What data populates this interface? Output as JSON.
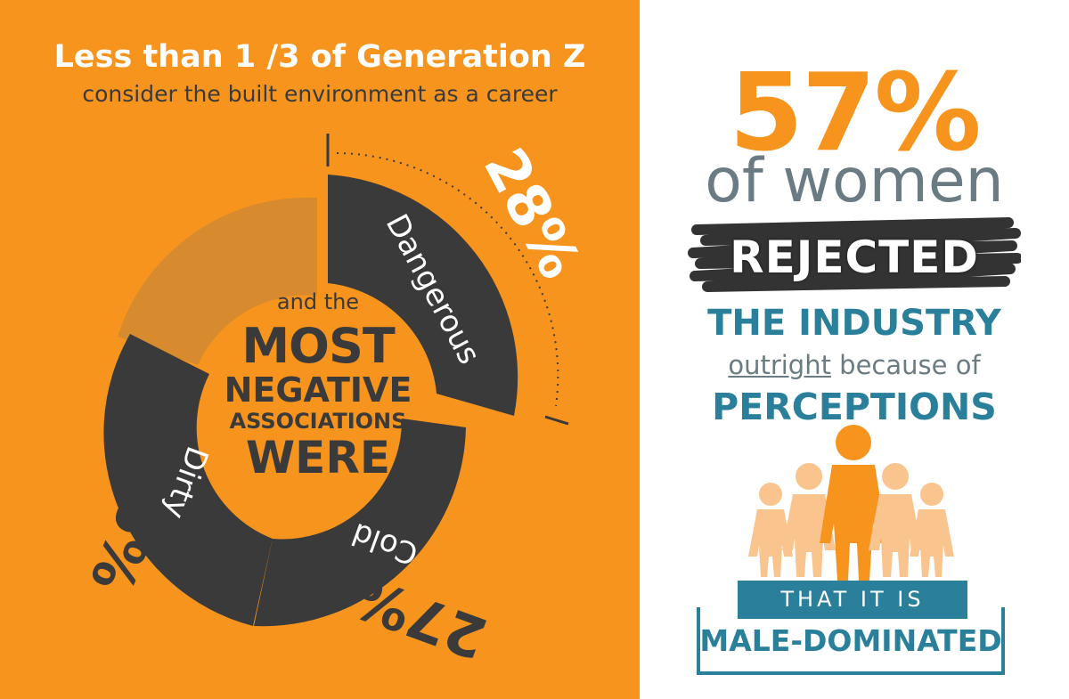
{
  "left": {
    "headline": "Less than 1 /3 of Generation Z",
    "subhead": "consider the built environment as a career",
    "center": {
      "line1": "and the",
      "line2": "MOST",
      "line3": "NEGATIVE",
      "line4": "ASSOCIATIONS",
      "line5": "WERE"
    },
    "segments": [
      {
        "label": "Dangerous",
        "percent": "28%",
        "value": 28
      },
      {
        "label": "Cold",
        "percent": "27%",
        "value": 27
      },
      {
        "label": "Dirty",
        "percent": "26%",
        "value": 26
      }
    ]
  },
  "right": {
    "stat": "57%",
    "of_women": "of women",
    "rejected": "REJECTED",
    "the_industry": "THE INDUSTRY",
    "outright": "outright",
    "because_of": " because of",
    "perceptions": "PERCEPTIONS",
    "banner_top": "THAT IT IS",
    "banner_bottom": "MALE-DOMINATED"
  },
  "colors": {
    "orange": "#F7941D",
    "dark": "#3A3A3A",
    "teal": "#2A7F9A",
    "gray": "#6B7B83",
    "peach": "#F9C48E"
  }
}
